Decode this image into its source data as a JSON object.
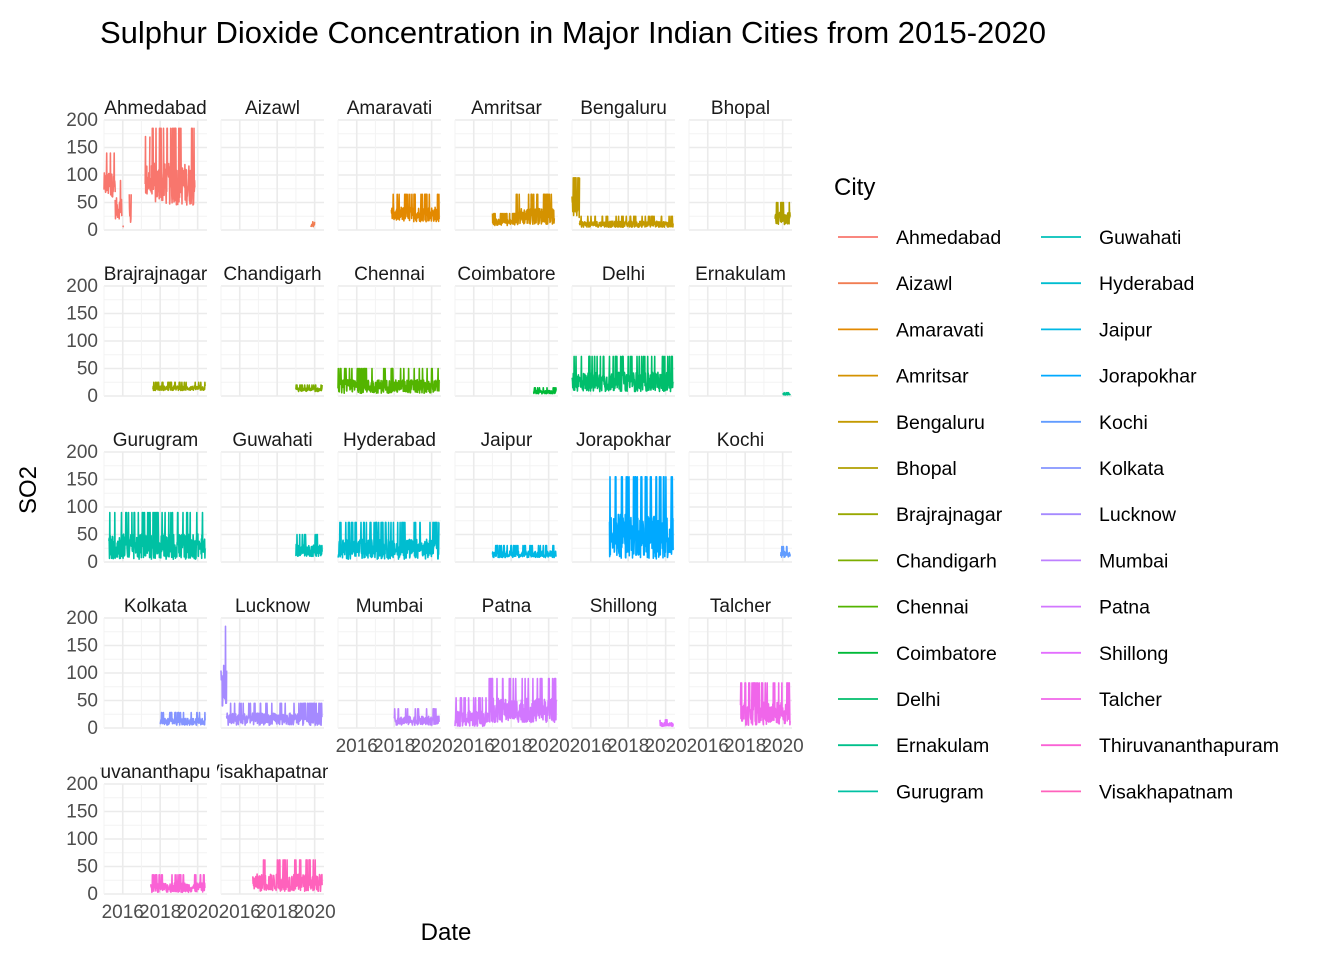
{
  "chart_data": {
    "type": "line",
    "title": "Sulphur Dioxide Concentration in Major Indian Cities from 2015-2020",
    "xlabel": "Date",
    "ylabel": "SO2",
    "ylim": [
      0,
      200
    ],
    "yticks": [
      0,
      50,
      100,
      150,
      200
    ],
    "xticks": [
      "2016",
      "2018",
      "2020"
    ],
    "xlim": [
      2015,
      2020.5
    ],
    "grid": true,
    "legend": {
      "title": "City",
      "placement": "right",
      "columns": 2
    },
    "series": [
      {
        "name": "Ahmedabad",
        "color": "#F8766D",
        "segments": [
          [
            2015.0,
            2015.6,
            60,
            140
          ],
          [
            2015.6,
            2015.95,
            20,
            90
          ],
          [
            2016.0,
            2016.05,
            5,
            10
          ],
          [
            2016.35,
            2016.45,
            10,
            65
          ],
          [
            2017.2,
            2017.45,
            60,
            170
          ],
          [
            2017.45,
            2019.85,
            45,
            185
          ]
        ]
      },
      {
        "name": "Aizawl",
        "color": "#F17D52",
        "segments": [
          [
            2019.8,
            2020.0,
            5,
            15
          ]
        ]
      },
      {
        "name": "Amaravati",
        "color": "#E38900",
        "segments": [
          [
            2017.85,
            2020.4,
            15,
            65
          ]
        ]
      },
      {
        "name": "Amritsar",
        "color": "#D49200",
        "segments": [
          [
            2017.0,
            2018.2,
            8,
            30
          ],
          [
            2018.2,
            2020.3,
            10,
            65
          ]
        ]
      },
      {
        "name": "Bengaluru",
        "color": "#C49A00",
        "segments": [
          [
            2015.0,
            2015.4,
            20,
            95
          ],
          [
            2015.4,
            2020.4,
            5,
            25
          ]
        ]
      },
      {
        "name": "Bhopal",
        "color": "#B09F00",
        "segments": [
          [
            2019.6,
            2020.4,
            10,
            50
          ]
        ]
      },
      {
        "name": "Brajrajnagar",
        "color": "#99A800",
        "segments": [
          [
            2017.6,
            2020.4,
            10,
            25
          ]
        ]
      },
      {
        "name": "Chandigarh",
        "color": "#7CAE00",
        "segments": [
          [
            2019.0,
            2020.4,
            8,
            20
          ]
        ]
      },
      {
        "name": "Chennai",
        "color": "#53B400",
        "segments": [
          [
            2015.0,
            2020.4,
            5,
            50
          ]
        ]
      },
      {
        "name": "Coimbatore",
        "color": "#00BA38",
        "segments": [
          [
            2019.2,
            2020.4,
            4,
            15
          ]
        ]
      },
      {
        "name": "Delhi",
        "color": "#00BE6C",
        "segments": [
          [
            2015.0,
            2020.4,
            8,
            72
          ]
        ]
      },
      {
        "name": "Ernakulam",
        "color": "#00C08B",
        "segments": [
          [
            2020.0,
            2020.4,
            2,
            6
          ]
        ]
      },
      {
        "name": "Gurugram",
        "color": "#00C1A3",
        "segments": [
          [
            2015.25,
            2020.4,
            5,
            90
          ]
        ]
      },
      {
        "name": "Guwahati",
        "color": "#00C0B8",
        "segments": [
          [
            2019.0,
            2020.4,
            10,
            50
          ]
        ]
      },
      {
        "name": "Hyderabad",
        "color": "#00BDD0",
        "segments": [
          [
            2015.0,
            2020.4,
            5,
            72
          ]
        ]
      },
      {
        "name": "Jaipur",
        "color": "#00B8E5",
        "segments": [
          [
            2017.0,
            2020.4,
            8,
            30
          ]
        ]
      },
      {
        "name": "Jorapokhar",
        "color": "#00A9FF",
        "segments": [
          [
            2017.0,
            2020.4,
            5,
            155
          ]
        ]
      },
      {
        "name": "Kochi",
        "color": "#619CFF",
        "segments": [
          [
            2019.9,
            2020.4,
            8,
            28
          ]
        ]
      },
      {
        "name": "Kolkata",
        "color": "#8494FF",
        "segments": [
          [
            2018.0,
            2020.4,
            5,
            28
          ]
        ]
      },
      {
        "name": "Lucknow",
        "color": "#A58AFF",
        "segments": [
          [
            2015.0,
            2015.3,
            40,
            185
          ],
          [
            2015.3,
            2020.4,
            5,
            45
          ]
        ]
      },
      {
        "name": "Mumbai",
        "color": "#BE80FF",
        "segments": [
          [
            2018.0,
            2020.4,
            5,
            35
          ]
        ]
      },
      {
        "name": "Patna",
        "color": "#D277FF",
        "segments": [
          [
            2015.0,
            2016.8,
            3,
            55
          ],
          [
            2016.8,
            2020.4,
            10,
            90
          ]
        ]
      },
      {
        "name": "Shillong",
        "color": "#E36EFF",
        "segments": [
          [
            2019.7,
            2020.4,
            3,
            15
          ]
        ]
      },
      {
        "name": "Talcher",
        "color": "#F066EA",
        "segments": [
          [
            2017.75,
            2020.4,
            5,
            82
          ]
        ]
      },
      {
        "name": "Thiruvananthapuram",
        "color": "#FA62D5",
        "segments": [
          [
            2017.5,
            2020.4,
            3,
            35
          ]
        ]
      },
      {
        "name": "Visakhapatnam",
        "color": "#FF62BC",
        "segments": [
          [
            2016.7,
            2020.4,
            5,
            62
          ]
        ]
      }
    ]
  }
}
